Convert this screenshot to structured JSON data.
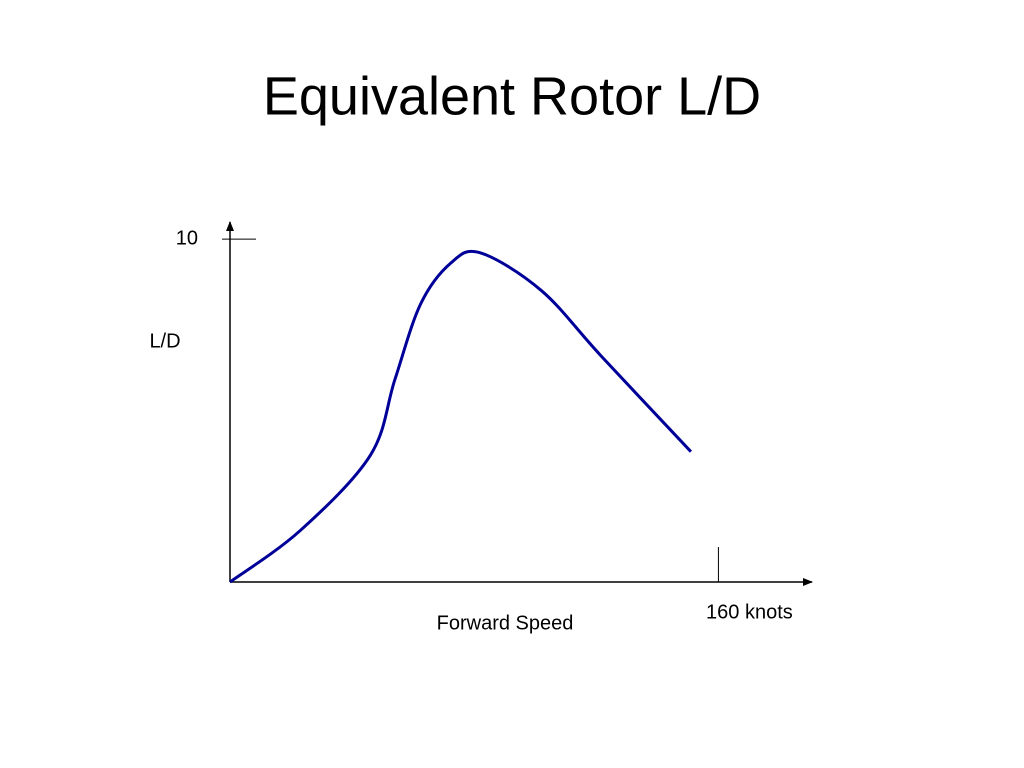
{
  "chart_data": {
    "type": "line",
    "title": "Equivalent Rotor L/D",
    "x_label": "Forward Speed",
    "y_label": "L/D",
    "x": [
      0,
      23,
      46,
      54,
      62.4,
      72.3,
      82,
      102,
      121.5,
      151
    ],
    "values": [
      0,
      1.5,
      3.7,
      5.9,
      8.1,
      9.3,
      9.6,
      8.5,
      6.6,
      3.8
    ],
    "color": "#000099",
    "xlim": [
      0,
      190
    ],
    "ylim": [
      0,
      10.5
    ],
    "xticks": [
      {
        "value": 160,
        "label": "160 knots"
      }
    ],
    "yticks": [
      10
    ],
    "grid": false
  }
}
